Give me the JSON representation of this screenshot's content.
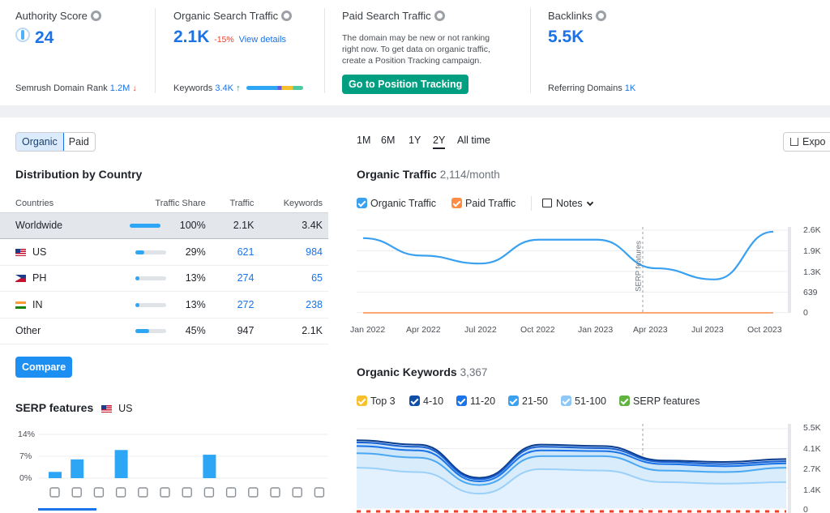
{
  "metrics": {
    "authority": {
      "title": "Authority Score",
      "value": "24",
      "foot_label": "Semrush Domain Rank",
      "foot_value": "1.2M",
      "foot_arrow": "↓"
    },
    "organic": {
      "title": "Organic Search Traffic",
      "value": "2.1K",
      "change": "-15%",
      "link": "View details",
      "foot_label": "Keywords",
      "foot_value": "3.4K",
      "foot_arrow": "↑"
    },
    "paid": {
      "title": "Paid Search Traffic",
      "line1": "The domain may be new or not ranking",
      "line2": "right now. To get data on organic traffic,",
      "line3": "create a Position Tracking campaign.",
      "button": "Go to Position Tracking"
    },
    "backlinks": {
      "title": "Backlinks",
      "value": "5.5K",
      "foot_label": "Referring Domains",
      "foot_value": "1K"
    }
  },
  "toggle": {
    "organic": "Organic",
    "paid": "Paid"
  },
  "distribution": {
    "title": "Distribution by Country",
    "headers": [
      "Countries",
      "Traffic Share",
      "Traffic",
      "Keywords"
    ],
    "rows": [
      {
        "country": "Worldwide",
        "share": "100%",
        "share_frac": 1.0,
        "traffic": "2.1K",
        "keywords": "3.4K"
      },
      {
        "country": "US",
        "share": "29%",
        "share_frac": 0.29,
        "traffic": "621",
        "keywords": "984"
      },
      {
        "country": "PH",
        "share": "13%",
        "share_frac": 0.13,
        "traffic": "274",
        "keywords": "65"
      },
      {
        "country": "IN",
        "share": "13%",
        "share_frac": 0.13,
        "traffic": "272",
        "keywords": "238"
      },
      {
        "country": "Other",
        "share": "45%",
        "share_frac": 0.45,
        "traffic": "947",
        "keywords": "2.1K"
      }
    ],
    "compare": "Compare"
  },
  "serp": {
    "title": "SERP features",
    "country": "US",
    "yticks": [
      "14%",
      "7%",
      "0%"
    ]
  },
  "periods": [
    "1M",
    "6M",
    "1Y",
    "2Y",
    "All time"
  ],
  "export": "Expo",
  "traffic_chart": {
    "title": "Organic Traffic",
    "subtitle": "2,114/month",
    "legend": {
      "organic": "Organic Traffic",
      "paid": "Paid Traffic",
      "notes": "Notes"
    },
    "yticks": [
      "2.6K",
      "1.9K",
      "1.3K",
      "639",
      "0"
    ],
    "xticks": [
      "Jan 2022",
      "Apr 2022",
      "Jul 2022",
      "Oct 2022",
      "Jan 2023",
      "Apr 2023",
      "Jul 2023",
      "Oct 2023"
    ],
    "annotation": "SERP features"
  },
  "keywords_chart": {
    "title": "Organic Keywords",
    "subtitle": "3,367",
    "legend": [
      "Top 3",
      "4-10",
      "11-20",
      "21-50",
      "51-100",
      "SERP features"
    ],
    "yticks": [
      "5.5K",
      "4.1K",
      "2.7K",
      "1.4K",
      "0"
    ]
  },
  "colors": {
    "accent": "#1a73e8",
    "green": "#009f81",
    "negative": "#e8412c",
    "organic": "#3aa0f0",
    "paid": "#ff8c42"
  },
  "chart_data": [
    {
      "type": "line",
      "title": "Organic Traffic",
      "ylim": [
        0,
        2600
      ],
      "x": [
        "Jan 2022",
        "Apr 2022",
        "Jul 2022",
        "Oct 2022",
        "Jan 2023",
        "Apr 2023",
        "Jul 2023",
        "Oct 2023"
      ],
      "series": [
        {
          "name": "Organic Traffic",
          "values": [
            2350,
            1800,
            1550,
            2300,
            2300,
            1400,
            1050,
            2550
          ]
        },
        {
          "name": "Paid Traffic",
          "values": [
            0,
            0,
            0,
            0,
            0,
            0,
            0,
            0
          ]
        }
      ]
    },
    {
      "type": "area",
      "title": "Organic Keywords",
      "ylim": [
        0,
        5500
      ],
      "series": [
        {
          "name": "Top 3",
          "values": [
            4700,
            4400,
            2100,
            4400,
            4300,
            3300,
            3200,
            3400
          ]
        },
        {
          "name": "4-10",
          "values": [
            4550,
            4250,
            2000,
            4250,
            4150,
            3200,
            3050,
            3250
          ]
        },
        {
          "name": "11-20",
          "values": [
            4300,
            4000,
            1850,
            4000,
            3950,
            3050,
            2900,
            3100
          ]
        },
        {
          "name": "21-50",
          "values": [
            3800,
            3500,
            1600,
            3600,
            3600,
            2600,
            2500,
            2800
          ]
        },
        {
          "name": "51-100",
          "values": [
            2800,
            2500,
            1000,
            2700,
            2600,
            1800,
            1700,
            1800
          ]
        }
      ]
    },
    {
      "type": "bar",
      "title": "SERP features",
      "ylim": [
        0,
        14
      ],
      "values": [
        2,
        6,
        0,
        9,
        0,
        0,
        0,
        7.5,
        0,
        0,
        0,
        0,
        0
      ]
    }
  ]
}
